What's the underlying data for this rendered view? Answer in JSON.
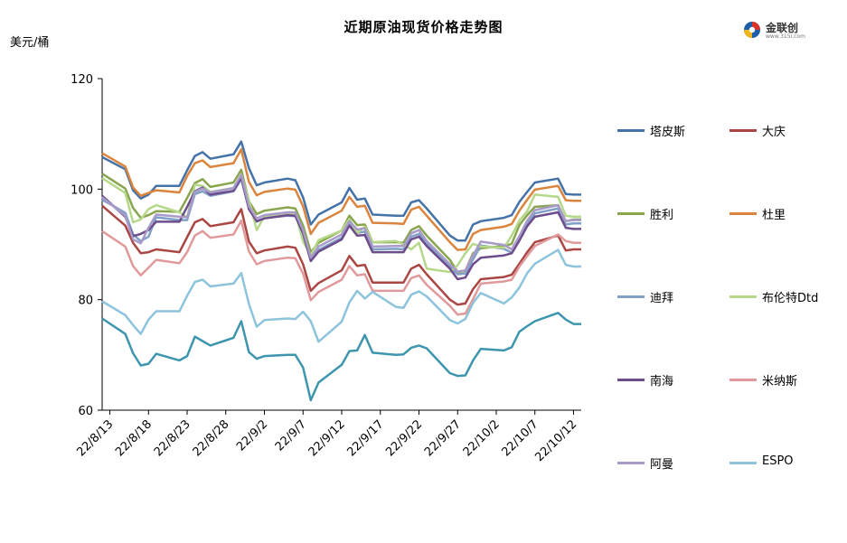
{
  "title": "近期原油现货价格走势图",
  "unit_label": "美元/桶",
  "logo": {
    "name": "金联创",
    "url": "www.315i.com"
  },
  "chart_data": {
    "type": "line",
    "title": "近期原油现货价格走势图",
    "ylabel": "美元/桶",
    "ylim": [
      60,
      120
    ],
    "yticks": [
      60,
      80,
      100,
      120
    ],
    "grid": false,
    "legend_position": "right",
    "xtick_labels": [
      "22/8/13",
      "22/8/18",
      "22/8/23",
      "22/8/28",
      "22/9/2",
      "22/9/7",
      "22/9/12",
      "22/9/17",
      "22/9/22",
      "22/9/27",
      "22/10/2",
      "22/10/7",
      "22/10/12"
    ],
    "x": [
      "22/8/12",
      "22/8/15",
      "22/8/16",
      "22/8/17",
      "22/8/18",
      "22/8/19",
      "22/8/22",
      "22/8/23",
      "22/8/24",
      "22/8/25",
      "22/8/26",
      "22/8/29",
      "22/8/30",
      "22/8/31",
      "22/9/1",
      "22/9/2",
      "22/9/5",
      "22/9/6",
      "22/9/7",
      "22/9/8",
      "22/9/9",
      "22/9/12",
      "22/9/13",
      "22/9/14",
      "22/9/15",
      "22/9/16",
      "22/9/19",
      "22/9/20",
      "22/9/21",
      "22/9/22",
      "22/9/23",
      "22/9/26",
      "22/9/27",
      "22/9/28",
      "22/9/29",
      "22/9/30",
      "22/10/3",
      "22/10/4",
      "22/10/5",
      "22/10/6",
      "22/10/7",
      "22/10/10",
      "22/10/11",
      "22/10/12",
      "22/10/13"
    ],
    "series": [
      {
        "name": "塔皮斯",
        "color": "#4572A7",
        "values": [
          105.8,
          103.6,
          99.8,
          98.3,
          99.0,
          100.6,
          100.6,
          103.4,
          106.0,
          106.7,
          105.5,
          106.3,
          108.6,
          103.8,
          100.7,
          101.2,
          101.9,
          101.6,
          98.5,
          93.6,
          95.4,
          97.6,
          100.2,
          98.1,
          98.3,
          95.4,
          95.2,
          95.2,
          97.6,
          98.0,
          96.5,
          91.6,
          90.7,
          90.7,
          93.6,
          94.2,
          94.8,
          95.3,
          97.7,
          99.5,
          101.2,
          101.9,
          99.1,
          99.0,
          99.0
        ]
      },
      {
        "name": "大庆",
        "color": "#AA4643",
        "values": [
          97.0,
          93.4,
          90.3,
          88.4,
          88.6,
          89.1,
          88.6,
          91.3,
          94.0,
          94.6,
          93.3,
          94.0,
          96.4,
          90.5,
          88.4,
          88.9,
          89.6,
          89.4,
          86.4,
          81.6,
          83.0,
          85.3,
          87.9,
          86.1,
          86.3,
          83.1,
          83.1,
          83.1,
          85.6,
          86.3,
          84.6,
          80.0,
          79.1,
          79.3,
          81.9,
          83.7,
          84.1,
          84.5,
          86.5,
          88.6,
          90.4,
          91.6,
          88.9,
          89.1,
          89.1
        ]
      },
      {
        "name": "胜利",
        "color": "#89A54E",
        "values": [
          102.8,
          100.1,
          96.6,
          94.8,
          95.3,
          96.0,
          95.9,
          98.4,
          101.1,
          101.8,
          100.4,
          101.2,
          103.5,
          97.8,
          95.5,
          96.1,
          96.7,
          96.5,
          93.4,
          88.6,
          90.3,
          92.5,
          95.2,
          93.5,
          93.6,
          90.4,
          90.4,
          90.3,
          92.6,
          93.3,
          91.6,
          87.2,
          85.0,
          85.2,
          88.4,
          89.3,
          89.7,
          90.1,
          93.5,
          95.3,
          96.8,
          97.1,
          94.2,
          94.5,
          94.5
        ]
      },
      {
        "name": "杜里",
        "color": "#DB843D",
        "values": [
          106.5,
          104.1,
          100.3,
          98.8,
          99.3,
          99.8,
          99.4,
          102.4,
          104.7,
          105.2,
          104.0,
          104.7,
          107.2,
          101.3,
          98.9,
          99.5,
          100.1,
          99.9,
          96.9,
          91.9,
          93.9,
          96.1,
          98.6,
          96.8,
          97.0,
          93.9,
          93.8,
          93.7,
          96.3,
          96.8,
          95.2,
          90.4,
          89.0,
          89.1,
          91.9,
          92.6,
          93.2,
          93.7,
          96.1,
          98.1,
          99.9,
          100.6,
          98.0,
          97.9,
          97.9
        ]
      },
      {
        "name": "迪拜",
        "color": "#80A0C8",
        "values": [
          98.1,
          95.7,
          91.8,
          90.6,
          91.4,
          94.9,
          94.4,
          94.4,
          99.1,
          99.6,
          98.8,
          99.6,
          101.8,
          96.4,
          94.1,
          94.8,
          95.2,
          95.1,
          92.0,
          87.3,
          89.0,
          91.2,
          93.6,
          92.1,
          92.3,
          89.1,
          89.2,
          89.1,
          91.4,
          91.9,
          90.1,
          85.9,
          84.6,
          84.7,
          87.3,
          89.8,
          89.2,
          88.5,
          90.9,
          93.7,
          95.6,
          96.5,
          93.6,
          93.8,
          93.8
        ]
      },
      {
        "name": "布伦特Dtd",
        "color": "#B5D88A",
        "values": [
          102.0,
          99.3,
          94.0,
          94.5,
          96.4,
          97.1,
          95.8,
          94.9,
          100.8,
          100.6,
          99.5,
          100.2,
          102.6,
          98.0,
          92.6,
          95.1,
          95.7,
          95.6,
          90.5,
          88.0,
          90.8,
          92.5,
          94.6,
          92.1,
          93.2,
          90.4,
          90.6,
          90.0,
          89.1,
          90.3,
          85.6,
          85.0,
          86.2,
          88.4,
          90.1,
          89.6,
          89.4,
          91.6,
          94.3,
          96.0,
          99.0,
          98.6,
          95.2,
          95.0,
          95.0
        ]
      },
      {
        "name": "南海",
        "color": "#6D4D8C",
        "values": [
          98.8,
          95.0,
          91.5,
          91.9,
          92.6,
          94.1,
          94.1,
          96.8,
          99.6,
          100.3,
          99.0,
          99.7,
          102.1,
          96.4,
          94.2,
          94.7,
          95.3,
          95.2,
          92.0,
          87.0,
          88.7,
          90.9,
          93.4,
          91.6,
          91.7,
          88.6,
          88.6,
          88.6,
          90.9,
          91.4,
          89.7,
          85.6,
          83.7,
          84.0,
          86.4,
          87.6,
          88.0,
          88.4,
          90.7,
          93.3,
          95.0,
          95.8,
          93.0,
          92.8,
          92.8
        ]
      },
      {
        "name": "米纳斯",
        "color": "#E09A9C",
        "values": [
          92.4,
          89.6,
          86.1,
          84.4,
          85.8,
          87.2,
          86.6,
          88.6,
          91.6,
          92.4,
          91.2,
          91.8,
          94.3,
          88.7,
          86.4,
          87.0,
          87.6,
          87.5,
          84.7,
          79.9,
          81.4,
          83.6,
          86.1,
          84.4,
          84.6,
          81.6,
          81.6,
          81.6,
          83.9,
          84.4,
          82.7,
          78.9,
          77.3,
          77.5,
          80.1,
          82.9,
          83.3,
          83.6,
          86.0,
          87.9,
          89.7,
          91.8,
          90.6,
          90.3,
          90.3
        ]
      },
      {
        "name": "阿曼",
        "color": "#A89BC9",
        "values": [
          98.5,
          95.2,
          90.9,
          90.2,
          93.0,
          95.4,
          95.0,
          94.9,
          99.5,
          100.1,
          99.4,
          100.2,
          102.6,
          96.9,
          94.7,
          95.3,
          95.8,
          95.8,
          92.6,
          87.6,
          89.6,
          91.8,
          94.2,
          92.7,
          92.9,
          89.6,
          89.7,
          89.7,
          92.0,
          92.6,
          90.6,
          86.4,
          85.1,
          85.3,
          88.0,
          90.5,
          89.9,
          89.1,
          91.5,
          94.3,
          96.2,
          97.1,
          94.2,
          94.4,
          94.4
        ]
      },
      {
        "name": "ESPO",
        "color": "#8DC4DC",
        "values": [
          79.7,
          77.2,
          75.4,
          73.8,
          76.4,
          77.9,
          77.9,
          80.7,
          83.2,
          83.6,
          82.4,
          82.9,
          84.8,
          79.2,
          75.1,
          76.3,
          76.6,
          76.5,
          77.8,
          76.1,
          72.4,
          76.0,
          79.5,
          81.6,
          80.2,
          81.4,
          78.7,
          78.5,
          80.9,
          81.5,
          80.6,
          76.3,
          75.7,
          76.5,
          79.4,
          81.2,
          79.3,
          80.4,
          82.2,
          84.8,
          86.5,
          89.0,
          86.3,
          86.0,
          86.0
        ]
      },
      {
        "name": "",
        "color": "#3D96AE",
        "values": [
          76.6,
          73.8,
          70.3,
          68.1,
          68.4,
          70.2,
          69.0,
          69.8,
          73.3,
          72.5,
          71.7,
          73.1,
          76.1,
          70.5,
          69.3,
          69.8,
          70.0,
          70.0,
          67.7,
          61.8,
          65.0,
          68.2,
          70.7,
          70.8,
          73.6,
          70.4,
          70.0,
          70.1,
          71.3,
          71.7,
          71.2,
          66.7,
          66.2,
          66.3,
          69.0,
          71.1,
          70.8,
          71.4,
          74.2,
          75.2,
          76.1,
          77.6,
          76.4,
          75.6,
          75.6
        ]
      }
    ]
  }
}
